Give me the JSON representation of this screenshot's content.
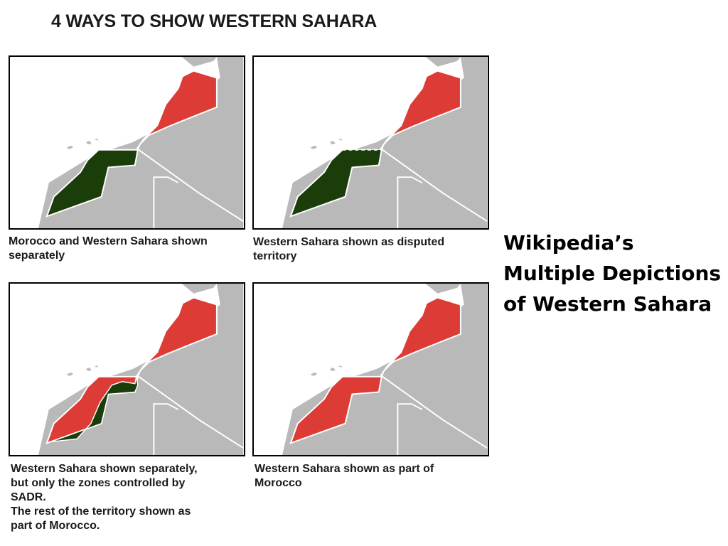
{
  "title": "4 WAYS TO SHOW WESTERN SAHARA",
  "colors": {
    "morocco": "#dc3b36",
    "western_sahara": "#1b3d0a",
    "land": "#b9b9b9",
    "sea": "#ffffff",
    "border": "#ffffff"
  },
  "panels": [
    {
      "caption_lines": [
        "Morocco and Western Sahara shown",
        "separately"
      ]
    },
    {
      "caption_lines": [
        "Western Sahara shown as disputed",
        "territory"
      ]
    },
    {
      "caption_lines": [
        "Western Sahara shown separately,",
        "but only the zones controlled by",
        "SADR.",
        "The rest of the territory shown as",
        "part of Morocco."
      ]
    },
    {
      "caption_lines": [
        "Western Sahara shown as part of",
        "Morocco"
      ]
    }
  ],
  "side_title_lines": [
    "Wikipedia’s",
    "Multiple Depictions",
    "of Western Sahara"
  ]
}
